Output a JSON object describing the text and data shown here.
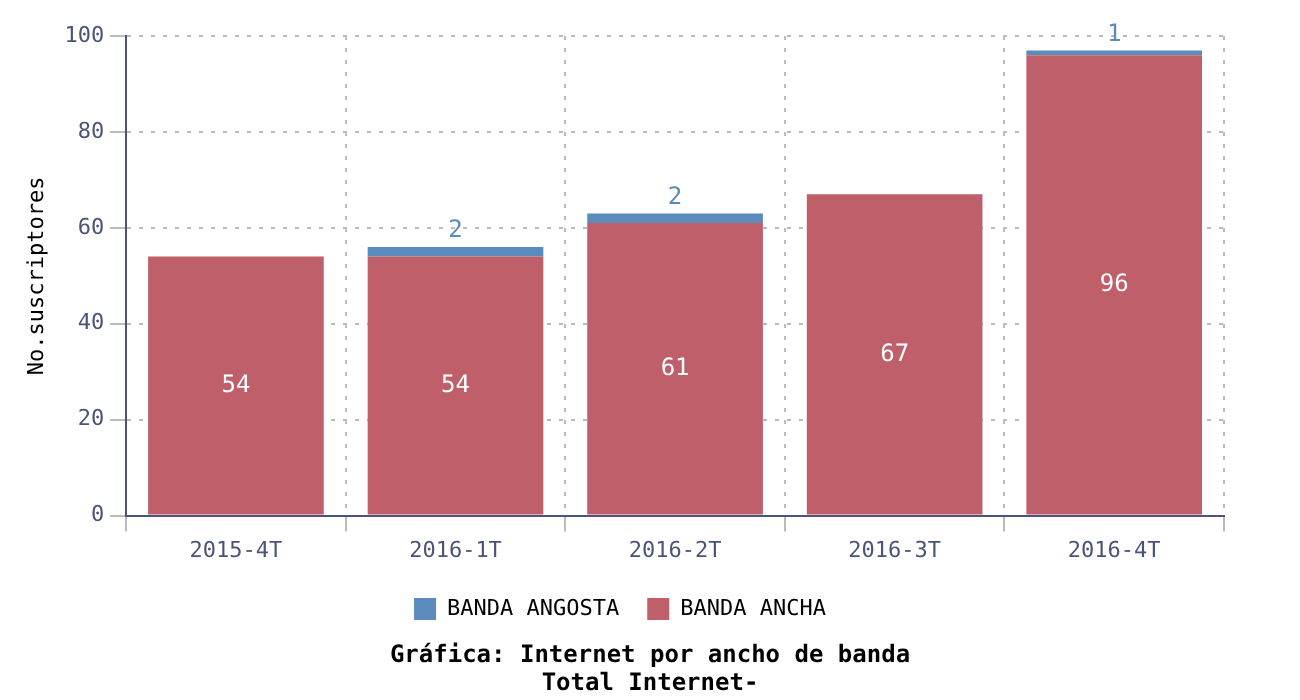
{
  "chart_data": {
    "type": "bar",
    "title": "Gráfica: Internet por ancho de banda",
    "subtitle": "Total Internet-",
    "ylabel": "No.suscriptores",
    "categories": [
      "2015-4T",
      "2016-1T",
      "2016-2T",
      "2016-3T",
      "2016-4T"
    ],
    "series": [
      {
        "name": "BANDA ANCHA",
        "color": "#be5f6a",
        "values": [
          54,
          54,
          61,
          67,
          96
        ]
      },
      {
        "name": "BANDA ANGOSTA",
        "color": "#5b8bbc",
        "values": [
          null,
          2,
          2,
          null,
          1
        ]
      }
    ],
    "stacked": true,
    "data_labels": true,
    "ylim": [
      0,
      100
    ],
    "yticks": [
      0,
      20,
      40,
      60,
      80,
      100
    ],
    "grid": true,
    "legend": "bottom"
  }
}
